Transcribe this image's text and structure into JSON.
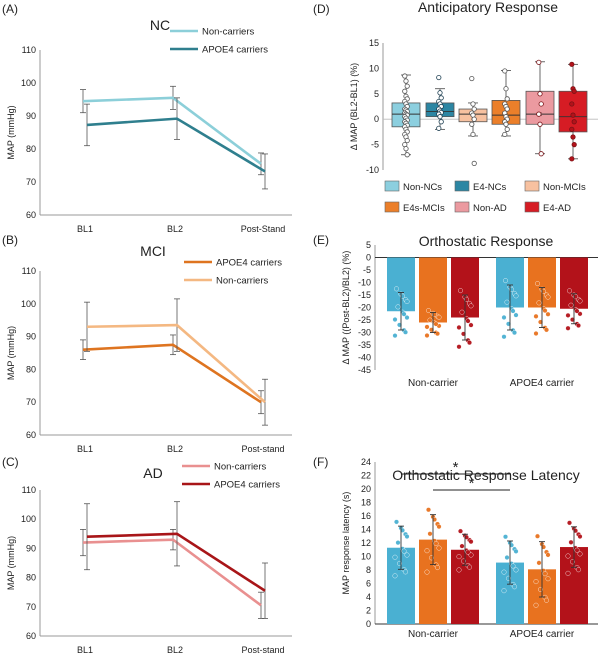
{
  "figure": {
    "panels": {
      "A": "(A)",
      "B": "(B)",
      "C": "(C)",
      "D": "(D)",
      "E": "(E)",
      "F": "(F)"
    }
  },
  "colors": {
    "nc_non": "#8ccfd9",
    "nc_e4": "#2f7f8e",
    "mci_non": "#f4b882",
    "mci_e4": "#de7420",
    "ad_non": "#e99090",
    "ad_e4": "#a81518",
    "bar_nc": "#4ab0d2",
    "bar_mci": "#e8721f",
    "bar_ad": "#b3121a",
    "box_nonnc": "#8ccfdf",
    "box_e4nc": "#2c86a3",
    "box_nonmci": "#f7c1a0",
    "box_e4mci": "#eb7f2a",
    "box_nonad": "#eb9aa0",
    "box_e4ad": "#d61c24"
  },
  "chart_data": [
    {
      "id": "A",
      "type": "line",
      "title": "NC",
      "categories": [
        "BL1",
        "BL2",
        "Post-Stand"
      ],
      "ylabel": "MAP (mmHg)",
      "ylim": [
        60,
        110
      ],
      "yticks": [
        60,
        70,
        80,
        90,
        100,
        110
      ],
      "series": [
        {
          "name": "Non-carriers",
          "color": "#8ccfd9",
          "values": [
            94.5,
            95.5,
            75.5
          ],
          "err": [
            3.5,
            3.5,
            3.3
          ]
        },
        {
          "name": "APOE4 carriers",
          "color": "#2f7f8e",
          "values": [
            87.3,
            89.2,
            73.2
          ],
          "err": [
            6.3,
            6.3,
            5.3
          ]
        }
      ]
    },
    {
      "id": "B",
      "type": "line",
      "title": "MCI",
      "categories": [
        "BL1",
        "BL2",
        "Post-stand"
      ],
      "ylabel": "MAP (mmHg)",
      "ylim": [
        60,
        110
      ],
      "yticks": [
        60,
        70,
        80,
        90,
        100,
        110
      ],
      "series": [
        {
          "name": "APOE4 carriers",
          "color": "#de7420",
          "values": [
            86,
            87.5,
            70
          ],
          "err": [
            3,
            3,
            3.5
          ]
        },
        {
          "name": "Non-carriers",
          "color": "#f4b882",
          "values": [
            93,
            93.5,
            70
          ],
          "err": [
            7.5,
            8,
            7
          ]
        }
      ]
    },
    {
      "id": "C",
      "type": "line",
      "title": "AD",
      "categories": [
        "BL1",
        "BL2",
        "Post-stand"
      ],
      "ylabel": "MAP (mmHg)",
      "ylim": [
        60,
        110
      ],
      "yticks": [
        60,
        70,
        80,
        90,
        100,
        110
      ],
      "series": [
        {
          "name": "Non-carriers",
          "color": "#e99090",
          "values": [
            92,
            93,
            70.5
          ],
          "err": [
            4.5,
            3.5,
            4.5
          ]
        },
        {
          "name": "APOE4 carriers",
          "color": "#a81518",
          "values": [
            94,
            95,
            75.5
          ],
          "err": [
            11.3,
            11,
            9.5
          ]
        }
      ]
    },
    {
      "id": "D",
      "type": "box",
      "title": "Anticipatory Response",
      "ylabel": "Δ MAP  (BL2-BL1) (%)",
      "ylim": [
        -10,
        15
      ],
      "yticks": [
        -10,
        -5,
        0,
        5,
        10,
        15
      ],
      "legend": [
        "Non-NCs",
        "E4-NCs",
        "Non-MCIs",
        "E4s-MCIs",
        "Non-AD",
        "E4-AD"
      ],
      "boxes": [
        {
          "name": "Non-NCs",
          "color": "#8ccfdf",
          "q1": -1.5,
          "median": 1,
          "q3": 3.2,
          "whislo": -7,
          "whishi": 8.7,
          "mean": 0.9,
          "points": [
            8.5,
            7.5,
            6.5,
            5.5,
            4.5,
            4.0,
            3.5,
            3.0,
            2.5,
            2.0,
            1.8,
            1.5,
            1.2,
            1.0,
            0.8,
            0.5,
            0.2,
            -0.2,
            -0.5,
            -0.8,
            -1.2,
            -1.5,
            -2.0,
            -2.5,
            -3.0,
            -3.5,
            -4.2,
            -5.0,
            -5.8,
            -7.0
          ]
        },
        {
          "name": "E4-NCs",
          "color": "#2c86a3",
          "q1": 0.5,
          "median": 1.5,
          "q3": 3.2,
          "whislo": -2,
          "whishi": 6,
          "mean": 1.8,
          "points": [
            8.2,
            5.2,
            4.2,
            3.5,
            3.0,
            2.5,
            2.0,
            1.6,
            1.3,
            1.0,
            0.5,
            -0.5,
            -1.8
          ]
        },
        {
          "name": "Non-MCIs",
          "color": "#f7c1a0",
          "q1": -0.5,
          "median": 1,
          "q3": 2,
          "whislo": -3.3,
          "whishi": 3.2,
          "mean": 0.3,
          "points": [
            8.0,
            3.0,
            2.0,
            1.2,
            0.8,
            0.0,
            -1.0,
            -3.0,
            -8.7
          ]
        },
        {
          "name": "E4s-MCIs",
          "color": "#eb7f2a",
          "q1": -1,
          "median": 0.8,
          "q3": 3.7,
          "whislo": -3.3,
          "whishi": 9.6,
          "mean": 0.9,
          "points": [
            9.5,
            6.0,
            4.0,
            3.0,
            2.5,
            2.0,
            1.2,
            0.5,
            0.0,
            -0.5,
            -1.0,
            -2.0,
            -3.0
          ]
        },
        {
          "name": "Non-AD",
          "color": "#eb9aa0",
          "q1": -1,
          "median": 1,
          "q3": 5.5,
          "whislo": -6.8,
          "whishi": 11.3,
          "mean": 1.0,
          "points": [
            11.2,
            5.0,
            3.0,
            1.0,
            -1.0,
            -6.8
          ]
        },
        {
          "name": "E4-AD",
          "color": "#d61c24",
          "q1": -2.5,
          "median": 0.5,
          "q3": 5.5,
          "whislo": -7.8,
          "whishi": 10.8,
          "mean": 0.8,
          "points": [
            10.8,
            6.0,
            5.5,
            3.0,
            0.8,
            -0.5,
            -2.0,
            -3.5,
            -5.0,
            -7.8
          ]
        }
      ]
    },
    {
      "id": "E",
      "type": "bar",
      "title": "Orthostatic Response",
      "ylabel": "Δ MAP ((Post-BL2)/BL2) (%)",
      "ylim": [
        -45,
        5
      ],
      "yticks": [
        -45,
        -40,
        -35,
        -30,
        -25,
        -20,
        -15,
        -10,
        -5,
        0,
        5
      ],
      "categories": [
        "Non-carrier",
        "APOE4 carrier"
      ],
      "series": [
        {
          "name": "NC",
          "color": "#4ab0d2",
          "values": [
            -21.5,
            -20
          ],
          "err": [
            7.5,
            9
          ]
        },
        {
          "name": "MCI",
          "color": "#e8721f",
          "values": [
            -26,
            -20
          ],
          "err": [
            4,
            8
          ]
        },
        {
          "name": "AD",
          "color": "#b3121a",
          "values": [
            -24,
            -20.5
          ],
          "err": [
            9,
            6
          ]
        }
      ]
    },
    {
      "id": "F",
      "type": "bar",
      "title": "Orthostatic Response Latency",
      "ylabel": "MAP response latency (s)",
      "ylim": [
        0,
        24
      ],
      "yticks": [
        0,
        2,
        4,
        6,
        8,
        10,
        12,
        14,
        16,
        18,
        20,
        22,
        24
      ],
      "categories": [
        "Non-carrier",
        "APOE4 carrier"
      ],
      "series": [
        {
          "name": "NC",
          "color": "#4ab0d2",
          "values": [
            11.3,
            9.1
          ],
          "err": [
            3.2,
            3.2
          ]
        },
        {
          "name": "MCI",
          "color": "#e8721f",
          "values": [
            12.5,
            8.1
          ],
          "err": [
            3.7,
            4.1
          ]
        },
        {
          "name": "AD",
          "color": "#b3121a",
          "values": [
            11,
            11.4
          ],
          "err": [
            2.3,
            3.0
          ]
        }
      ],
      "annotations": [
        {
          "label": "*",
          "from": [
            0,
            0
          ],
          "to": [
            1,
            0
          ]
        },
        {
          "label": "*",
          "from": [
            0,
            1
          ],
          "to": [
            1,
            0
          ]
        }
      ]
    }
  ]
}
